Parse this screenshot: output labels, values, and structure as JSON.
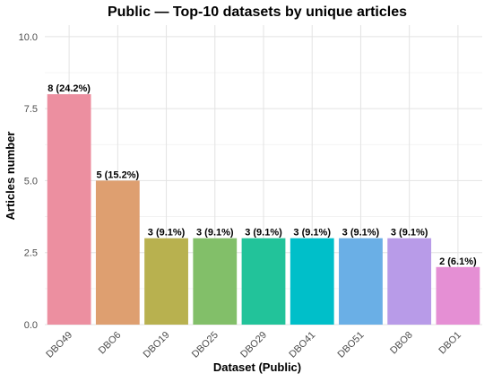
{
  "chart_data": {
    "type": "bar",
    "title": "Public — Top-10 datasets by unique articles",
    "xlabel": "Dataset (Public)",
    "ylabel": "Articles number",
    "categories": [
      "DBO49",
      "DBO6",
      "DBO19",
      "DBO25",
      "DBO29",
      "DBO41",
      "DBO51",
      "DBO8",
      "DBO1"
    ],
    "values": [
      8,
      5,
      3,
      3,
      3,
      3,
      3,
      3,
      2
    ],
    "data_labels": [
      "8 (24.2%)",
      "5 (15.2%)",
      "3 (9.1%)",
      "3 (9.1%)",
      "3 (9.1%)",
      "3 (9.1%)",
      "3 (9.1%)",
      "3 (9.1%)",
      "2 (6.1%)"
    ],
    "colors": [
      "#ec8fa0",
      "#de9f70",
      "#b8b14f",
      "#82bf69",
      "#22c39a",
      "#00bfc9",
      "#6aafe6",
      "#b89be8",
      "#e58fd4"
    ],
    "ylim": [
      0,
      10.4
    ],
    "yticks": [
      0,
      2.5,
      5,
      7.5,
      10
    ],
    "ytick_labels": [
      "0.0",
      "2.5",
      "5.0",
      "7.5",
      "10.0"
    ],
    "grid": true,
    "legend": "none"
  }
}
